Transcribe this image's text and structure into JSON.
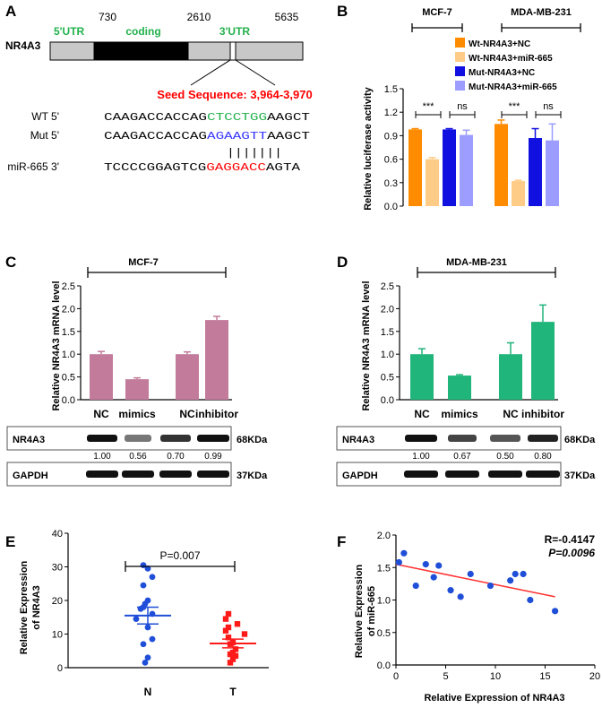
{
  "figure": {
    "panels": [
      "A",
      "B",
      "C",
      "D",
      "E",
      "F"
    ]
  },
  "panelA": {
    "gene": "NR4A3",
    "positions": [
      "730",
      "2610",
      "5635"
    ],
    "regions": [
      "5'UTR",
      "coding",
      "3'UTR"
    ],
    "seed_label": "Seed Sequence: 3,964-3,970",
    "seq_labels": [
      "WT 5'",
      "Mut 5'",
      "miR-665  3'"
    ],
    "wt": {
      "pre": "CAAGACCACCAG",
      "mid": "CTCCTGG",
      "post": "AAGCT"
    },
    "mut": {
      "pre": "CAAGACCACCAG",
      "mid": "AGAAGTT",
      "post": "AAGCT"
    },
    "mir": {
      "pre": "TCCCCGGAGTCG",
      "mid": "GAGGACC",
      "post": "AGTA"
    },
    "pairing": "|||||||",
    "colors": {
      "utr": "#22b14c",
      "seed": "#ff0000",
      "mut": "#3333ff"
    }
  },
  "panelB": {
    "cell_lines": [
      "MCF-7",
      "MDA-MB-231"
    ],
    "sig": [
      "***",
      "ns",
      "***",
      "ns"
    ]
  },
  "panelC": {
    "cell_line": "MCF-7",
    "blot_values": [
      "1.00",
      "0.56",
      "0.70",
      "0.99"
    ]
  },
  "panelD": {
    "cell_line": "MDA-MB-231",
    "blot_values": [
      "1.00",
      "0.67",
      "0.50",
      "0.80"
    ]
  },
  "blots": {
    "protein": "NR4A3",
    "control": "GAPDH",
    "size_protein": "68KDa",
    "size_control": "37KDa"
  },
  "panelE": {
    "p_value": "P=0.007"
  },
  "panelF": {
    "r_label": "R=-0.4147",
    "p_label": "P=0.0096"
  },
  "chart_data": [
    {
      "id": "B",
      "type": "bar",
      "categories": [
        "MCF-7",
        "MDA-MB-231"
      ],
      "series": [
        {
          "name": "Wt-NR4A3+NC",
          "values": [
            0.98,
            1.05
          ],
          "errors": [
            0.01,
            0.05
          ],
          "color": "#ff8c00"
        },
        {
          "name": "Wt-NR4A3+miR-665",
          "values": [
            0.6,
            0.32
          ],
          "errors": [
            0.02,
            0.01
          ],
          "color": "#ffcc88"
        },
        {
          "name": "Mut-NR4A3+NC",
          "values": [
            0.98,
            0.87
          ],
          "errors": [
            0.01,
            0.12
          ],
          "color": "#1010e0"
        },
        {
          "name": "Mut-NR4A3+miR-665",
          "values": [
            0.91,
            0.84
          ],
          "errors": [
            0.06,
            0.21
          ],
          "color": "#9d9dff"
        }
      ],
      "ylabel": "Relative luciferase  activity",
      "ylim": [
        0,
        1.5
      ],
      "yticks": [
        "0.0",
        "0.3",
        "0.6",
        "0.9",
        "1.2",
        "1.5"
      ]
    },
    {
      "id": "C",
      "type": "bar",
      "categories": [
        "NC",
        "mimics",
        "NC",
        "inhibitor"
      ],
      "values": [
        1.0,
        0.45,
        1.0,
        1.75
      ],
      "errors": [
        0.06,
        0.03,
        0.05,
        0.08
      ],
      "color": "#c27b9a",
      "ylabel": "Relative NR4A3 mRNA level",
      "ylim": [
        0,
        2.5
      ],
      "yticks": [
        "0.0",
        "0.5",
        "1.0",
        "1.5",
        "2.0",
        "2.5"
      ]
    },
    {
      "id": "D",
      "type": "bar",
      "categories": [
        "NC",
        "mimics",
        "NC",
        "inhibitor"
      ],
      "values": [
        1.0,
        0.53,
        1.0,
        1.71
      ],
      "errors": [
        0.12,
        0.02,
        0.25,
        0.37
      ],
      "color": "#20b57a",
      "ylabel": "Relative NR4A3 mRNA level",
      "ylim": [
        0,
        2.5
      ],
      "yticks": [
        "0.0",
        "0.5",
        "1.0",
        "1.5",
        "2.0",
        "2.5"
      ]
    },
    {
      "id": "E",
      "type": "scatter",
      "categories": [
        "N",
        "T"
      ],
      "groups": [
        {
          "name": "N",
          "values": [
            30.5,
            29.5,
            27,
            24.5,
            20,
            19,
            18,
            17.5,
            16,
            14.5,
            12,
            8.5,
            7,
            3,
            1.5
          ],
          "mean": 15.5,
          "sem": 2.5,
          "color": "#1f4ed8"
        },
        {
          "name": "T",
          "values": [
            16,
            14.5,
            13,
            12,
            11,
            10,
            9,
            7.5,
            7,
            5.5,
            4.5,
            4,
            3.5,
            2.5,
            1.5
          ],
          "mean": 7.2,
          "sem": 1.3,
          "color": "#ff1a1a"
        }
      ],
      "ylabel": "Relative Expression\nof NR4A3",
      "ylim": [
        0,
        40
      ],
      "yticks": [
        "0",
        "10",
        "20",
        "30",
        "40"
      ]
    },
    {
      "id": "F",
      "type": "scatter",
      "x": [
        0.3,
        0.8,
        2.0,
        3.0,
        3.8,
        4.3,
        5.5,
        6.5,
        7.5,
        9.5,
        11.5,
        12.0,
        12.8,
        13.5,
        16.0
      ],
      "y": [
        1.58,
        1.72,
        1.22,
        1.55,
        1.35,
        1.53,
        1.15,
        1.05,
        1.4,
        1.22,
        1.3,
        1.4,
        1.4,
        1.0,
        0.83
      ],
      "fit": {
        "x": [
          0,
          16
        ],
        "y": [
          1.55,
          1.05
        ]
      },
      "xlabel": "Relative Expression of NR4A3",
      "ylabel": "Relative Expression\nof miR-665",
      "xlim": [
        0,
        20
      ],
      "ylim": [
        0,
        2.0
      ],
      "xticks": [
        "0",
        "5",
        "10",
        "15",
        "20"
      ],
      "yticks": [
        "0.0",
        "0.5",
        "1.0",
        "1.5",
        "2.0"
      ]
    }
  ]
}
